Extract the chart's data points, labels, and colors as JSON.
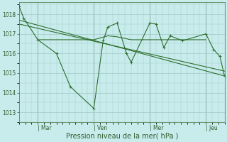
{
  "background_color": "#c8ecec",
  "grid_color": "#a0c8c8",
  "line_color": "#2d6e2d",
  "xlabel": "Pression niveau de la mer( hPa )",
  "ylim": [
    1012.5,
    1018.6
  ],
  "yticks": [
    1013,
    1014,
    1015,
    1016,
    1017,
    1018
  ],
  "day_labels": [
    "| Mar",
    "| Ven",
    "| Mer",
    "| Jeu"
  ],
  "day_positions": [
    24,
    96,
    168,
    240
  ],
  "xlim": [
    0,
    264
  ],
  "vlines": [
    24,
    96,
    168,
    240
  ],
  "line1_x": [
    0,
    6,
    24,
    48,
    66,
    96,
    108,
    114,
    126,
    138,
    144,
    168,
    176,
    186,
    194,
    210,
    240,
    250,
    258,
    264
  ],
  "line1_y": [
    1018.4,
    1017.8,
    1016.7,
    1016.0,
    1014.3,
    1013.2,
    1016.65,
    1017.35,
    1017.55,
    1016.0,
    1015.55,
    1017.55,
    1017.5,
    1016.3,
    1016.9,
    1016.65,
    1017.0,
    1016.2,
    1015.85,
    1014.85
  ],
  "line2_x": [
    0,
    264
  ],
  "line2_y": [
    1017.7,
    1014.85
  ],
  "line3_x": [
    0,
    264
  ],
  "line3_y": [
    1017.5,
    1015.1
  ],
  "line4_x": [
    24,
    96,
    114,
    126,
    138,
    144,
    168,
    176,
    186,
    194,
    210,
    240
  ],
  "line4_y": [
    1016.7,
    1016.7,
    1016.9,
    1016.85,
    1016.75,
    1016.7,
    1016.7,
    1016.7,
    1016.7,
    1016.7,
    1016.7,
    1016.7
  ]
}
